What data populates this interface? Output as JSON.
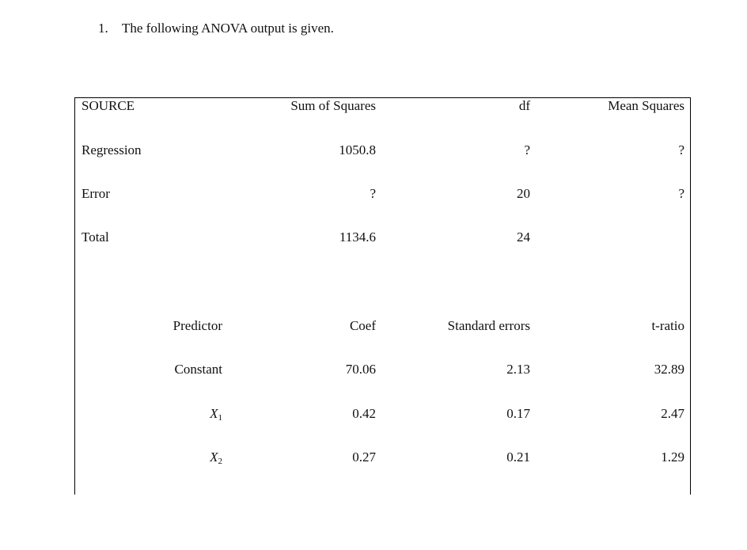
{
  "question": {
    "number": "1.",
    "text": "The following ANOVA output is given."
  },
  "anova": {
    "headers": [
      "SOURCE",
      "Sum of Squares",
      "df",
      "Mean Squares"
    ],
    "rows": [
      {
        "source": "Regression",
        "ss": "1050.8",
        "df": "?",
        "ms": "?"
      },
      {
        "source": "Error",
        "ss": "?",
        "df": "20",
        "ms": "?"
      },
      {
        "source": "Total",
        "ss": "1134.6",
        "df": "24",
        "ms": ""
      }
    ]
  },
  "coefficients": {
    "headers": [
      "Predictor",
      "Coef",
      "Standard errors",
      "t-ratio"
    ],
    "rows": [
      {
        "predictor": "Constant",
        "coef": "70.06",
        "se": "2.13",
        "t": "32.89"
      },
      {
        "predictor": "X",
        "sub": "1",
        "coef": "0.42",
        "se": "0.17",
        "t": "2.47"
      },
      {
        "predictor": "X",
        "sub": "2",
        "coef": "0.27",
        "se": "0.21",
        "t": "1.29"
      }
    ]
  }
}
